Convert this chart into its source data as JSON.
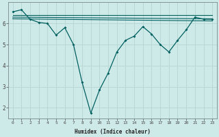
{
  "xlabel": "Humidex (Indice chaleur)",
  "ylabel": "",
  "background_color": "#ceeae8",
  "grid_color": "#b8d8d6",
  "line_color": "#006060",
  "xlim": [
    -0.5,
    23.5
  ],
  "ylim": [
    1.5,
    7.0
  ],
  "yticks": [
    2,
    3,
    4,
    5,
    6
  ],
  "xticks": [
    0,
    1,
    2,
    3,
    4,
    5,
    6,
    7,
    8,
    9,
    10,
    11,
    12,
    13,
    14,
    15,
    16,
    17,
    18,
    19,
    20,
    21,
    22,
    23
  ],
  "main_series": {
    "x": [
      0,
      1,
      2,
      3,
      4,
      5,
      6,
      7,
      8,
      9,
      10,
      11,
      12,
      13,
      14,
      15,
      16,
      17,
      18,
      19,
      20,
      21,
      22,
      23
    ],
    "y": [
      6.55,
      6.65,
      6.2,
      6.05,
      6.0,
      5.45,
      5.8,
      5.0,
      3.2,
      1.75,
      2.85,
      3.65,
      4.65,
      5.2,
      5.4,
      5.85,
      5.5,
      5.0,
      4.65,
      5.2,
      5.7,
      6.3,
      6.2,
      6.2
    ]
  },
  "ref_lines": [
    {
      "x": [
        0,
        23
      ],
      "y": [
        6.4,
        6.4
      ]
    },
    {
      "x": [
        0,
        23
      ],
      "y": [
        6.3,
        6.22
      ]
    },
    {
      "x": [
        0,
        23
      ],
      "y": [
        6.22,
        6.12
      ]
    }
  ]
}
